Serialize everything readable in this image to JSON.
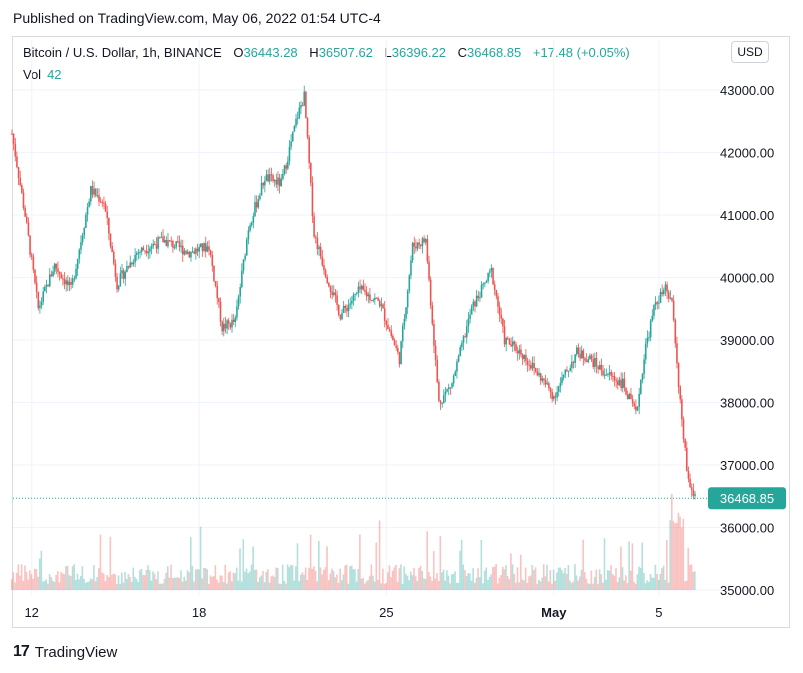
{
  "published": "Published on TradingView.com, May 06, 2022 01:54 UTC-4",
  "header": {
    "symbol": "Bitcoin / U.S. Dollar, 1h, BINANCE",
    "o_label": "O",
    "o_value": "36443.28",
    "h_label": "H",
    "h_value": "36507.62",
    "l_label": "L",
    "l_value": "36396.22",
    "c_label": "C",
    "c_value": "36468.85",
    "change": "+17.48 (+0.05%)",
    "vol_label": "Vol",
    "vol_value": "42"
  },
  "currency_button": "USD",
  "logo_text": "TradingView",
  "colors": {
    "up": "#26a69a",
    "down": "#ef5350",
    "grid": "#f0f3fa",
    "text": "#131722"
  },
  "chart_data": {
    "type": "candlestick",
    "ylim": [
      35000,
      43000
    ],
    "y_ticks": [
      "43000.00",
      "42000.00",
      "41000.00",
      "40000.00",
      "39000.00",
      "38000.00",
      "37000.00",
      "36000.00",
      "35000.00"
    ],
    "x_tick_labels": [
      "12",
      "18",
      "25",
      "May",
      "5"
    ],
    "last_price_label": "36468.85",
    "last_price": 36468.85,
    "close_path": [
      {
        "t": 0,
        "p": 42300
      },
      {
        "t": 4,
        "p": 41000
      },
      {
        "t": 8,
        "p": 39500
      },
      {
        "t": 13,
        "p": 40200
      },
      {
        "t": 18,
        "p": 39800
      },
      {
        "t": 24,
        "p": 41400
      },
      {
        "t": 28,
        "p": 41200
      },
      {
        "t": 32,
        "p": 39900
      },
      {
        "t": 38,
        "p": 40400
      },
      {
        "t": 46,
        "p": 40600
      },
      {
        "t": 54,
        "p": 40400
      },
      {
        "t": 60,
        "p": 40500
      },
      {
        "t": 64,
        "p": 39200
      },
      {
        "t": 68,
        "p": 39300
      },
      {
        "t": 72,
        "p": 40800
      },
      {
        "t": 77,
        "p": 41600
      },
      {
        "t": 82,
        "p": 41500
      },
      {
        "t": 87,
        "p": 42600
      },
      {
        "t": 89,
        "p": 42900
      },
      {
        "t": 92,
        "p": 40700
      },
      {
        "t": 96,
        "p": 40000
      },
      {
        "t": 100,
        "p": 39400
      },
      {
        "t": 106,
        "p": 39800
      },
      {
        "t": 112,
        "p": 39600
      },
      {
        "t": 118,
        "p": 38700
      },
      {
        "t": 122,
        "p": 40500
      },
      {
        "t": 126,
        "p": 40600
      },
      {
        "t": 130,
        "p": 38000
      },
      {
        "t": 134,
        "p": 38300
      },
      {
        "t": 140,
        "p": 39500
      },
      {
        "t": 146,
        "p": 40100
      },
      {
        "t": 150,
        "p": 39000
      },
      {
        "t": 155,
        "p": 38800
      },
      {
        "t": 161,
        "p": 38400
      },
      {
        "t": 165,
        "p": 38100
      },
      {
        "t": 172,
        "p": 38800
      },
      {
        "t": 176,
        "p": 38700
      },
      {
        "t": 180,
        "p": 38500
      },
      {
        "t": 186,
        "p": 38300
      },
      {
        "t": 190,
        "p": 37800
      },
      {
        "t": 193,
        "p": 38900
      },
      {
        "t": 196,
        "p": 39600
      },
      {
        "t": 199,
        "p": 39800
      },
      {
        "t": 201,
        "p": 39600
      },
      {
        "t": 204,
        "p": 37700
      },
      {
        "t": 206,
        "p": 36700
      },
      {
        "t": 208,
        "p": 36500
      }
    ],
    "x_tick_positions_t": [
      6,
      57,
      114,
      165,
      197
    ]
  }
}
